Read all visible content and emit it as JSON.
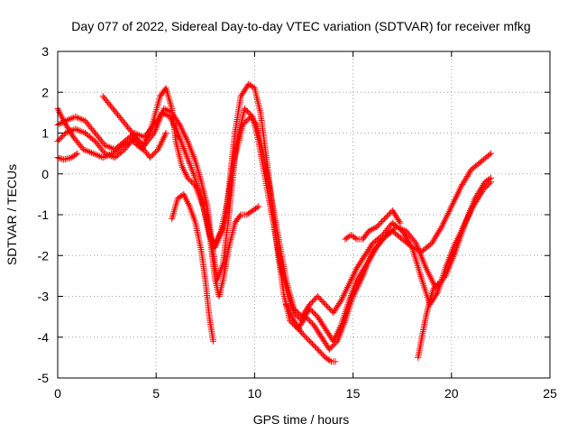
{
  "chart_data": {
    "type": "scatter",
    "title": "Day 077 of 2022, Sidereal Day-to-day VTEC variation (SDTVAR) for receiver mfkg",
    "xlabel": "GPS time / hours",
    "ylabel": "SDTVAR / TECUs",
    "xlim": [
      0,
      25
    ],
    "ylim": [
      -5,
      3
    ],
    "xticks": [
      "0",
      "5",
      "10",
      "15",
      "20",
      "25"
    ],
    "yticks": [
      "-5",
      "-4",
      "-3",
      "-2",
      "-1",
      "0",
      "1",
      "2",
      "3"
    ],
    "grid": true,
    "marker": "+",
    "color": "#ff0000",
    "series": [
      {
        "x": [
          0.0,
          0.3,
          0.8,
          1.3,
          1.8,
          2.3,
          2.8,
          3.3,
          3.8,
          4.3,
          4.8,
          5.2,
          5.5,
          5.8,
          6.0,
          6.3,
          6.6,
          7.0,
          7.4,
          7.7,
          8.0,
          8.5,
          9.0,
          9.3,
          9.7,
          10.0,
          10.3,
          10.6,
          10.9,
          11.2,
          11.5,
          11.8,
          12.2,
          12.6,
          13.0,
          13.4,
          13.8,
          14.2,
          14.6,
          15.0,
          15.5,
          16.0,
          16.5,
          17.0,
          17.5,
          18.0,
          18.5,
          19.0,
          19.5,
          20.0,
          20.5,
          21.0,
          21.5,
          22.0
        ],
        "y": [
          1.6,
          1.3,
          0.9,
          0.6,
          0.5,
          0.4,
          0.5,
          0.7,
          0.8,
          0.6,
          1.2,
          1.9,
          2.1,
          1.6,
          0.8,
          0.2,
          -0.1,
          -0.3,
          -0.8,
          -1.5,
          -1.8,
          -1.2,
          1.0,
          1.9,
          2.2,
          2.1,
          1.5,
          0.4,
          -0.8,
          -2.0,
          -3.0,
          -3.6,
          -3.8,
          -3.5,
          -3.7,
          -4.0,
          -4.3,
          -4.1,
          -3.6,
          -3.0,
          -2.5,
          -1.9,
          -1.6,
          -1.4,
          -1.6,
          -1.8,
          -1.9,
          -1.7,
          -1.3,
          -0.8,
          -0.3,
          0.1,
          0.3,
          0.5
        ]
      },
      {
        "x": [
          0.0,
          0.4,
          0.9,
          1.4,
          1.9,
          2.4,
          2.9,
          3.4,
          3.9,
          4.4,
          4.9,
          5.3,
          5.7,
          6.1,
          6.5,
          6.9,
          7.3,
          7.6,
          7.9,
          8.3,
          8.7,
          9.1,
          9.5,
          9.9,
          10.2,
          10.5,
          10.8,
          11.1,
          11.4,
          11.7,
          12.0,
          12.4,
          12.8,
          13.2,
          13.6,
          14.0,
          14.4,
          14.8,
          15.2,
          15.7,
          16.2,
          16.7,
          17.2,
          17.7,
          18.2,
          18.7,
          19.2,
          19.7,
          20.2,
          20.7,
          21.2,
          21.7,
          22.0
        ],
        "y": [
          1.2,
          1.3,
          1.4,
          1.3,
          1.0,
          0.7,
          0.6,
          0.8,
          1.0,
          0.9,
          1.2,
          1.5,
          1.4,
          1.0,
          0.5,
          0.0,
          -0.6,
          -1.2,
          -1.8,
          -1.4,
          -0.5,
          0.8,
          1.6,
          1.4,
          0.8,
          0.0,
          -0.8,
          -1.6,
          -2.4,
          -3.0,
          -3.4,
          -3.6,
          -3.3,
          -3.5,
          -3.8,
          -4.1,
          -3.7,
          -3.1,
          -2.6,
          -2.2,
          -1.8,
          -1.5,
          -1.3,
          -1.4,
          -1.7,
          -2.3,
          -2.8,
          -2.5,
          -1.9,
          -1.2,
          -0.6,
          -0.2,
          -0.1
        ]
      },
      {
        "x": [
          0.0,
          0.4,
          0.9,
          1.4,
          1.9,
          2.4,
          2.9,
          3.4,
          3.9,
          4.4,
          4.9,
          5.4,
          5.8,
          6.2,
          6.6,
          7.0,
          7.3,
          7.6,
          7.8,
          8.1,
          8.4,
          8.7,
          9.0,
          9.4,
          9.8,
          10.1,
          10.4,
          10.7,
          11.0,
          11.3,
          11.6,
          12.0,
          12.4,
          12.8,
          13.2,
          13.6,
          14.0,
          14.4,
          14.8,
          15.2,
          15.6,
          16.0,
          16.5,
          17.0,
          17.5,
          18.0,
          18.5,
          18.9,
          19.3,
          19.7,
          20.1,
          20.6,
          21.1,
          21.6,
          22.0
        ],
        "y": [
          0.8,
          1.0,
          1.1,
          1.0,
          0.8,
          0.5,
          0.4,
          0.6,
          0.9,
          0.7,
          1.0,
          1.6,
          1.5,
          1.2,
          0.8,
          0.3,
          -0.2,
          -0.8,
          -1.6,
          -2.6,
          -2.2,
          -1.0,
          0.4,
          1.2,
          1.4,
          1.2,
          0.6,
          -0.2,
          -1.0,
          -1.8,
          -2.6,
          -3.3,
          -3.5,
          -3.2,
          -3.0,
          -3.2,
          -3.4,
          -3.1,
          -2.7,
          -2.3,
          -2.0,
          -1.7,
          -1.5,
          -1.2,
          -1.4,
          -1.8,
          -2.6,
          -3.2,
          -2.9,
          -2.3,
          -1.8,
          -1.3,
          -0.8,
          -0.4,
          -0.2
        ]
      },
      {
        "x": [
          0.0,
          0.3,
          0.7,
          1.0
        ],
        "y": [
          0.4,
          0.35,
          0.4,
          0.5
        ]
      },
      {
        "x": [
          2.3,
          2.8,
          3.3,
          3.8,
          4.2,
          4.7,
          5.1,
          5.5
        ],
        "y": [
          1.9,
          1.6,
          1.3,
          1.0,
          0.7,
          0.4,
          0.6,
          1.0
        ]
      },
      {
        "x": [
          5.8,
          6.1,
          6.4,
          6.7,
          7.0,
          7.3,
          7.5,
          7.7,
          7.9
        ],
        "y": [
          -1.1,
          -0.6,
          -0.5,
          -0.8,
          -1.2,
          -1.9,
          -2.6,
          -3.5,
          -4.1
        ]
      },
      {
        "x": [
          7.6,
          7.8,
          8.0,
          8.2,
          8.4,
          8.7,
          9.0,
          9.3,
          9.6,
          9.9,
          10.2
        ],
        "y": [
          -1.0,
          -1.8,
          -2.6,
          -3.0,
          -2.6,
          -1.8,
          -1.2,
          -1.0,
          -1.0,
          -0.9,
          -0.8
        ]
      },
      {
        "x": [
          11.6,
          12.0,
          12.4,
          12.8,
          13.2,
          13.6,
          13.9,
          14.1
        ],
        "y": [
          -3.2,
          -3.6,
          -3.9,
          -4.1,
          -4.3,
          -4.5,
          -4.6,
          -4.6
        ]
      },
      {
        "x": [
          14.6,
          14.9,
          15.2,
          15.5,
          15.8,
          16.2,
          16.6,
          17.0,
          17.4
        ],
        "y": [
          -1.6,
          -1.5,
          -1.6,
          -1.6,
          -1.4,
          -1.3,
          -1.1,
          -0.9,
          -1.2
        ]
      },
      {
        "x": [
          18.3,
          18.5,
          18.7,
          18.9,
          19.1,
          19.3
        ],
        "y": [
          -4.5,
          -4.0,
          -3.5,
          -3.1,
          -2.8,
          -2.7
        ]
      }
    ]
  }
}
